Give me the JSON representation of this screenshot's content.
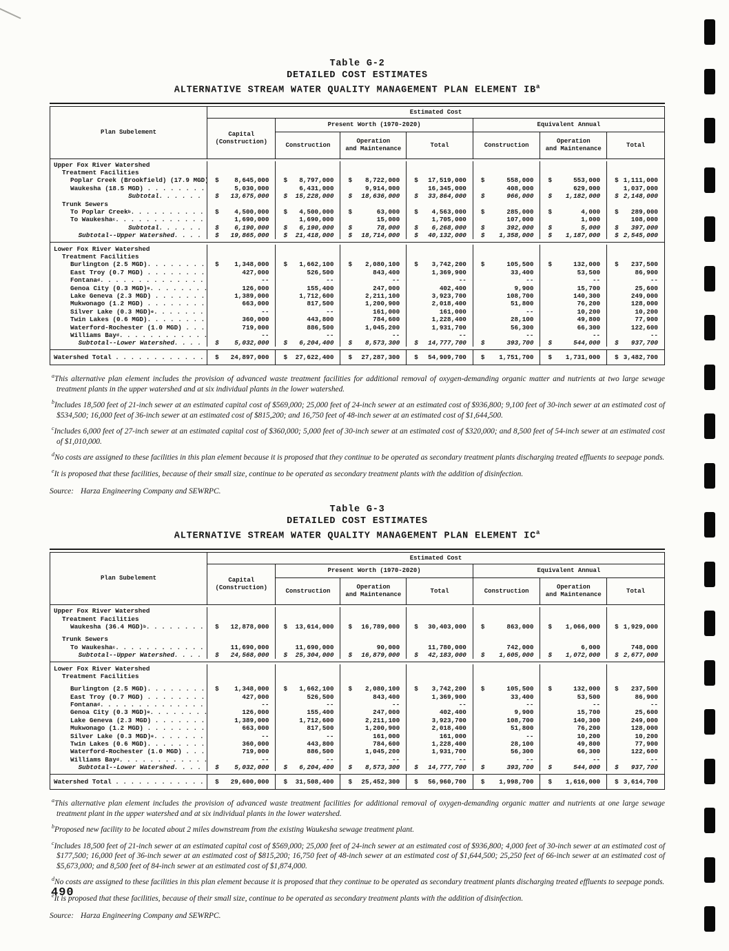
{
  "page": {
    "number": "490"
  },
  "tables": [
    {
      "title_line1": "Table G-2",
      "title_line2": "DETAILED COST ESTIMATES",
      "title_line3": "ALTERNATIVE STREAM WATER QUALITY MANAGEMENT PLAN ELEMENT IB",
      "title_superscript": "a",
      "header": {
        "plan_subelement": "Plan Subelement",
        "estimated_cost": "Estimated Cost",
        "capital_line1": "Capital",
        "capital_line2": "(Construction)",
        "present_worth": "Present Worth (1970-2020)",
        "equivalent_annual": "Equivalent Annual",
        "pw_construction": "Construction",
        "pw_operation_line1": "Operation",
        "pw_operation_line2": "and Maintenance",
        "pw_total": "Total",
        "ea_construction": "Construction",
        "ea_operation_line1": "Operation",
        "ea_operation_line2": "and Maintenance",
        "ea_total": "Total"
      },
      "sections": [
        {
          "rows": [
            {
              "t": "h0",
              "label": "Upper Fox River Watershed"
            },
            {
              "t": "h1",
              "label": "Treatment Facilities"
            },
            {
              "t": "d",
              "label": "Poplar Creek (Brookfield) (17.9 MGD). .",
              "cells": [
                "$8,645,000",
                "$8,797,000",
                "$8,722,000",
                "$17,519,000",
                "$558,000",
                "$553,000",
                "$1,111,000"
              ]
            },
            {
              "t": "d",
              "label": "Waukesha (18.5 MGD) . . . . . . . . . .",
              "cells": [
                "5,030,000",
                "6,431,000",
                "9,914,000",
                "16,345,000",
                "408,000",
                "629,000",
                "1,037,000"
              ]
            },
            {
              "t": "sub",
              "label": "Subtotal. . . . . .",
              "cells": [
                "$13,675,000",
                "$15,228,000",
                "$18,636,000",
                "$33,864,000",
                "$966,000",
                "$1,182,000",
                "$2,148,000"
              ]
            },
            {
              "t": "h1",
              "label": "Trunk Sewers"
            },
            {
              "t": "d",
              "label": "To Poplar Creek^b. . . . . . . . . . . .",
              "cells": [
                "$4,500,000",
                "$4,500,000",
                "$63,000",
                "$4,563,000",
                "$285,000",
                "$4,000",
                "$289,000"
              ]
            },
            {
              "t": "d",
              "label": "To Waukesha^c. . . . . . . . . . . . . .",
              "cells": [
                "1,690,000",
                "1,690,000",
                "15,000",
                "1,705,000",
                "107,000",
                "1,000",
                "108,000"
              ]
            },
            {
              "t": "sub",
              "label": "Subtotal. . . . . .",
              "cells": [
                "$6,190,000",
                "$6,190,000",
                "$78,000",
                "$6,268,000",
                "$392,000",
                "$5,000",
                "$397,000"
              ]
            },
            {
              "t": "sub",
              "label": "Subtotal--Upper Watershed. . . .",
              "cells": [
                "$19,865,000",
                "$21,418,000",
                "$18,714,000",
                "$40,132,000",
                "$1,358,000",
                "$1,187,000",
                "$2,545,000"
              ]
            }
          ]
        },
        {
          "rows": [
            {
              "t": "h0",
              "label": "Lower Fox River Watershed"
            },
            {
              "t": "h1",
              "label": "Treatment Facilities"
            },
            {
              "t": "d",
              "label": "Burlington (2.5 MGD). . . . . . . . . .",
              "cells": [
                "$1,348,000",
                "$1,662,100",
                "$2,080,100",
                "$3,742,200",
                "$105,500",
                "$132,000",
                "$237,500"
              ]
            },
            {
              "t": "d",
              "label": "East Troy (0.7 MGD) . . . . . . . . . .",
              "cells": [
                "427,000",
                "526,500",
                "843,400",
                "1,369,900",
                "33,400",
                "53,500",
                "86,900"
              ]
            },
            {
              "t": "d",
              "label": "Fontana^d. . . . . . . . . . . . . . . .",
              "cells": [
                "--",
                "--",
                "--",
                "--",
                "--",
                "--",
                "--"
              ]
            },
            {
              "t": "d",
              "label": "Genoa City (0.3 MGD)^e . . . . . . . . .",
              "cells": [
                "126,000",
                "155,400",
                "247,000",
                "402,400",
                "9,900",
                "15,700",
                "25,600"
              ]
            },
            {
              "t": "d",
              "label": "Lake Geneva (2.3 MGD) . . . . . . . . .",
              "cells": [
                "1,389,000",
                "1,712,600",
                "2,211,100",
                "3,923,700",
                "108,700",
                "140,300",
                "249,000"
              ]
            },
            {
              "t": "d",
              "label": "Mukwonago (1.2 MGD) . . . . . . . . . .",
              "cells": [
                "663,000",
                "817,500",
                "1,200,900",
                "2,018,400",
                "51,800",
                "76,200",
                "128,000"
              ]
            },
            {
              "t": "d",
              "label": "Silver Lake (0.3 MGD)^e. . . . . . . . .",
              "cells": [
                "--",
                "--",
                "161,000",
                "161,000",
                "--",
                "10,200",
                "10,200"
              ]
            },
            {
              "t": "d",
              "label": "Twin Lakes (0.6 MGD). . . . . . . . . .",
              "cells": [
                "360,000",
                "443,800",
                "784,600",
                "1,228,400",
                "28,100",
                "49,800",
                "77,900"
              ]
            },
            {
              "t": "d",
              "label": "Waterford-Rochester (1.0 MGD) . . . . .",
              "cells": [
                "719,000",
                "886,500",
                "1,045,200",
                "1,931,700",
                "56,300",
                "66,300",
                "122,600"
              ]
            },
            {
              "t": "d",
              "label": "Williams Bay^d . . . . . . . . . . . . .",
              "cells": [
                "--",
                "--",
                "--",
                "--",
                "--",
                "--",
                "--"
              ]
            },
            {
              "t": "sub",
              "label": "Subtotal--Lower Watershed. . . .",
              "cells": [
                "$5,032,000",
                "$6,204,400",
                "$8,573,300",
                "$14,777,700",
                "$393,700",
                "$544,000",
                "$937,700"
              ]
            }
          ]
        },
        {
          "total": true,
          "rows": [
            {
              "t": "total",
              "label": "Watershed Total . . . . . . . . . . . . . . .",
              "cells": [
                "$24,897,000",
                "$27,622,400",
                "$27,287,300",
                "$54,909,700",
                "$1,751,700",
                "$1,731,000",
                "$3,482,700"
              ]
            }
          ]
        }
      ],
      "footnotes": [
        {
          "sup": "a",
          "text": "This alternative plan element includes the provision of advanced waste treatment facilities for additional removal of oxygen-demanding organic matter and nutrients at two large sewage treatment plants in the upper watershed and at six individual plants in the lower watershed."
        },
        {
          "sup": "b",
          "text": "Includes 18,500 feet of 21-inch sewer at an estimated capital cost of $569,000; 25,000 feet of 24-inch sewer at an estimated cost of $936,800; 9,100 feet of 30-inch sewer at an estimated cost of $534,500; 16,000 feet of 36-inch sewer at an estimated cost of $815,200; and 16,750 feet of 48-inch sewer at an estimated cost of $1,644,500."
        },
        {
          "sup": "c",
          "text": "Includes 6,000 feet of 27-inch sewer at an estimated capital cost of $360,000; 5,000 feet of 30-inch sewer at an estimated cost of $320,000; and 8,500 feet of 54-inch sewer at an estimated cost of $1,010,000."
        },
        {
          "sup": "d",
          "text": "No costs are assigned to these facilities in this plan element because it is proposed that they continue to be operated as secondary treatment plants discharging treated effluents to seepage ponds."
        },
        {
          "sup": "e",
          "text": "It is proposed that these facilities, because of their small size, continue to be operated as secondary treatment plants with the addition of disinfection."
        }
      ],
      "source_label": "Source:",
      "source_text": "Harza Engineering Company and SEWRPC."
    },
    {
      "title_line1": "Table G-3",
      "title_line2": "DETAILED COST ESTIMATES",
      "title_line3": "ALTERNATIVE STREAM WATER QUALITY MANAGEMENT PLAN ELEMENT IC",
      "title_superscript": "a",
      "header": {
        "plan_subelement": "Plan Subelement",
        "estimated_cost": "Estimated Cost",
        "capital_line1": "Capital",
        "capital_line2": "(Construction)",
        "present_worth": "Present Worth (1970-2020)",
        "equivalent_annual": "Equivalent Annual",
        "pw_construction": "Construction",
        "pw_operation_line1": "Operation",
        "pw_operation_line2": "and Maintenance",
        "pw_total": "Total",
        "ea_construction": "Construction",
        "ea_operation_line1": "Operation",
        "ea_operation_line2": "and Maintenance",
        "ea_total": "Total"
      },
      "sections": [
        {
          "rows": [
            {
              "t": "h0",
              "label": "Upper Fox River Watershed"
            },
            {
              "t": "h1",
              "label": "Treatment Facilities"
            },
            {
              "t": "d",
              "label": "Waukesha (36.4 MGD)^b. . . . . . . . . .",
              "cells": [
                "$12,878,000",
                "$13,614,000",
                "$16,789,000",
                "$30,403,000",
                "$863,000",
                "$1,066,000",
                "$1,929,000"
              ]
            },
            {
              "t": "sp",
              "label": ""
            },
            {
              "t": "h1",
              "label": "Trunk Sewers"
            },
            {
              "t": "d",
              "label": "To Waukesha^c. . . . . . . . . . . . . .",
              "cells": [
                "11,690,000",
                "11,690,000",
                "90,000",
                "11,780,000",
                "742,000",
                "6,000",
                "748,000"
              ]
            },
            {
              "t": "sub",
              "label": "Subtotal--Upper Watershed. . . .",
              "cells": [
                "$24,568,000",
                "$25,304,000",
                "$16,879,000",
                "$42,183,000",
                "$1,605,000",
                "$1,072,000",
                "$2,677,000"
              ]
            }
          ]
        },
        {
          "rows": [
            {
              "t": "h0",
              "label": "Lower Fox River Watershed"
            },
            {
              "t": "h1",
              "label": "Treatment Facilities"
            },
            {
              "t": "sp",
              "label": ""
            },
            {
              "t": "d",
              "label": "Burlington (2.5 MGD). . . . . . . . . .",
              "cells": [
                "$1,348,000",
                "$1,662,100",
                "$2,080,100",
                "$3,742,200",
                "$105,500",
                "$132,000",
                "$237,500"
              ]
            },
            {
              "t": "d",
              "label": "East Troy (0.7 MGD) . . . . . . . . . .",
              "cells": [
                "427,000",
                "526,500",
                "843,400",
                "1,369,900",
                "33,400",
                "53,500",
                "86,900"
              ]
            },
            {
              "t": "d",
              "label": "Fontana^d. . . . . . . . . . . . . . . .",
              "cells": [
                "--",
                "--",
                "--",
                "--",
                "--",
                "--",
                "--"
              ]
            },
            {
              "t": "d",
              "label": "Genoa City (0.3 MGD)^e . . . . . . . . .",
              "cells": [
                "126,000",
                "155,400",
                "247,000",
                "402,400",
                "9,900",
                "15,700",
                "25,600"
              ]
            },
            {
              "t": "d",
              "label": "Lake Geneva (2.3 MGD) . . . . . . . . .",
              "cells": [
                "1,389,000",
                "1,712,600",
                "2,211,100",
                "3,923,700",
                "108,700",
                "140,300",
                "249,000"
              ]
            },
            {
              "t": "d",
              "label": "Mukwonago (1.2 MGD) . . . . . . . . . .",
              "cells": [
                "663,000",
                "817,500",
                "1,200,900",
                "2,018,400",
                "51,800",
                "76,200",
                "128,000"
              ]
            },
            {
              "t": "d",
              "label": "Silver Lake (0.3 MGD)^e. . . . . . . . .",
              "cells": [
                "--",
                "--",
                "161,000",
                "161,000",
                "--",
                "10,200",
                "10,200"
              ]
            },
            {
              "t": "d",
              "label": "Twin Lakes (0.6 MGD). . . . . . . . . .",
              "cells": [
                "360,000",
                "443,800",
                "784,600",
                "1,228,400",
                "28,100",
                "49,800",
                "77,900"
              ]
            },
            {
              "t": "d",
              "label": "Waterford-Rochester (1.0 MGD) . . . . .",
              "cells": [
                "719,000",
                "886,500",
                "1,045,200",
                "1,931,700",
                "56,300",
                "66,300",
                "122,600"
              ]
            },
            {
              "t": "d",
              "label": "Williams Bay^d . . . . . . . . . . . . .",
              "cells": [
                "--",
                "--",
                "--",
                "--",
                "--",
                "--",
                "--"
              ]
            },
            {
              "t": "sub",
              "label": "Subtotal--Lower Watershed. . . .",
              "cells": [
                "$5,032,000",
                "$6,204,400",
                "$8,573,300",
                "$14,777,700",
                "$393,700",
                "$544,000",
                "$937,700"
              ]
            }
          ]
        },
        {
          "total": true,
          "rows": [
            {
              "t": "total",
              "label": "Watershed Total . . . . . . . . . . . . . . .",
              "cells": [
                "$29,600,000",
                "$31,508,400",
                "$25,452,300",
                "$56,960,700",
                "$1,998,700",
                "$1,616,000",
                "$3,614,700"
              ]
            }
          ]
        }
      ],
      "footnotes": [
        {
          "sup": "a",
          "text": "This alternative plan element includes the provision of advanced waste treatment facilities for additional removal of oxygen-demanding organic matter and nutrients at one large sewage treatment plant in the upper watershed and at six individual plants in the lower watershed."
        },
        {
          "sup": "b",
          "text": "Proposed new facility to be located about 2 miles downstream from the existing Waukesha sewage treatment plant."
        },
        {
          "sup": "c",
          "text": "Includes 18,500 feet of 21-inch sewer at an estimated capital cost of $569,000; 25,000 feet of 24-inch sewer at an estimated cost of $936,800; 4,000 feet of 30-inch sewer at an estimated cost of $177,500; 16,000 feet of 36-inch sewer at an estimated cost of $815,200; 16,750 feet of 48-inch sewer at an estimated cost of $1,644,500; 25,250 feet of 66-inch sewer at an estimated cost of $5,673,000; and 8,500 feet of 84-inch sewer at an estimated cost of $1,874,000."
        },
        {
          "sup": "d",
          "text": "No costs are assigned to these facilities in this plan element because it is proposed that they continue to be operated as secondary treatment plants discharging treated effluents to seepage ponds."
        },
        {
          "sup": "e",
          "text": "It is proposed that these facilities, because of their small size, continue to be operated as secondary treatment plants with the addition of disinfection."
        }
      ],
      "source_label": "Source:",
      "source_text": "Harza Engineering Company and SEWRPC."
    }
  ]
}
